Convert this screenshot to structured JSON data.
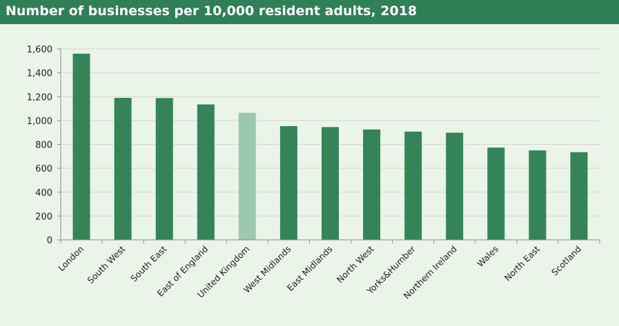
{
  "title": "Number of businesses per 10,000 resident adults, 2018",
  "colors": {
    "title_bar": "#2f7f57",
    "background": "#eaf4e8",
    "bar": "#358459",
    "highlight_bar": "#9cc9ae",
    "grid": "#d2d6d2",
    "axis": "#8a8a8a"
  },
  "chart_data": {
    "type": "bar",
    "categories": [
      "London",
      "South West",
      "South East",
      "East of England",
      "United Kingdom",
      "West Midlands",
      "East Midlands",
      "North West",
      "Yorks&Humber",
      "Northern Ireland",
      "Wales",
      "North East",
      "Scotland"
    ],
    "values": [
      1560,
      1190,
      1188,
      1135,
      1065,
      953,
      945,
      925,
      907,
      898,
      773,
      750,
      735
    ],
    "highlight_category": "United Kingdom",
    "y_ticks": [
      "0",
      "200",
      "400",
      "600",
      "800",
      "1,000",
      "1,200",
      "1,400",
      "1,600"
    ],
    "ylim": [
      0,
      1600
    ],
    "xlabel": "",
    "ylabel": "",
    "grid": true,
    "legend": false
  }
}
